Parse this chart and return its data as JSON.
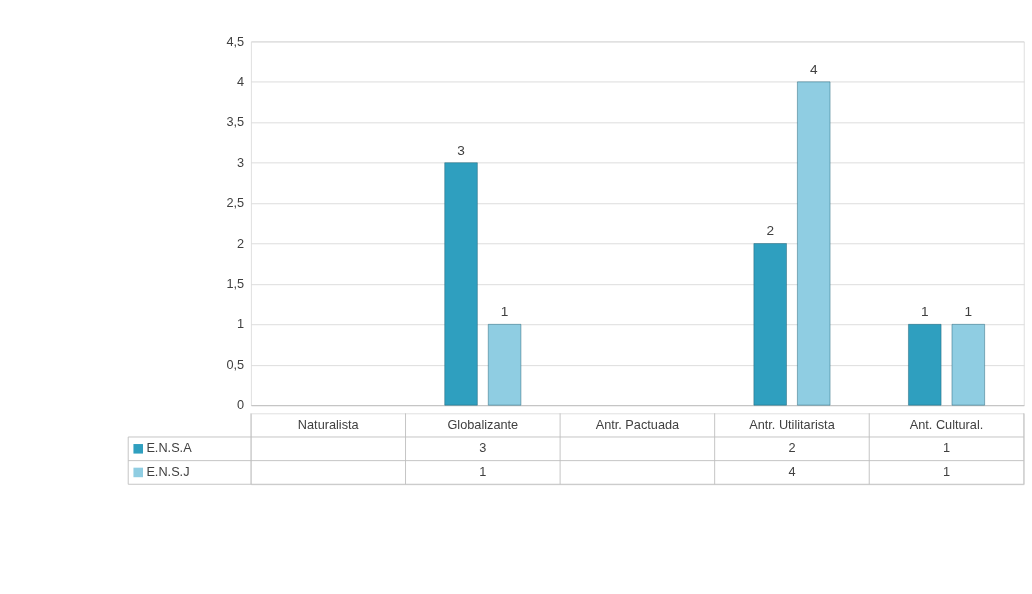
{
  "chart_data": {
    "type": "bar",
    "categories": [
      "Naturalista",
      "Globalizante",
      "Antr. Pactuada",
      "Antr. Utilitarista",
      "Ant. Cultural."
    ],
    "series": [
      {
        "name": "E.N.S.A",
        "color": "#2f9fbf",
        "values": [
          null,
          3,
          null,
          2,
          1
        ],
        "value_labels": [
          null,
          "3",
          null,
          "2",
          "1"
        ]
      },
      {
        "name": "E.N.S.J",
        "color": "#8fcde2",
        "values": [
          null,
          1,
          null,
          4,
          1
        ],
        "value_labels": [
          null,
          "1",
          null,
          "4",
          "1"
        ]
      }
    ],
    "ylim": [
      0,
      4.5
    ],
    "yticks": [
      0,
      {
        "value": 0.5,
        "label": "0,5"
      },
      1,
      {
        "value": 1.5,
        "label": "1,5"
      },
      2,
      {
        "value": 2.5,
        "label": "2,5"
      },
      3,
      {
        "value": 3.5,
        "label": "3,5"
      },
      4,
      {
        "value": 4.5,
        "label": "4,5"
      }
    ],
    "grid": "y",
    "legend": "bottom"
  }
}
